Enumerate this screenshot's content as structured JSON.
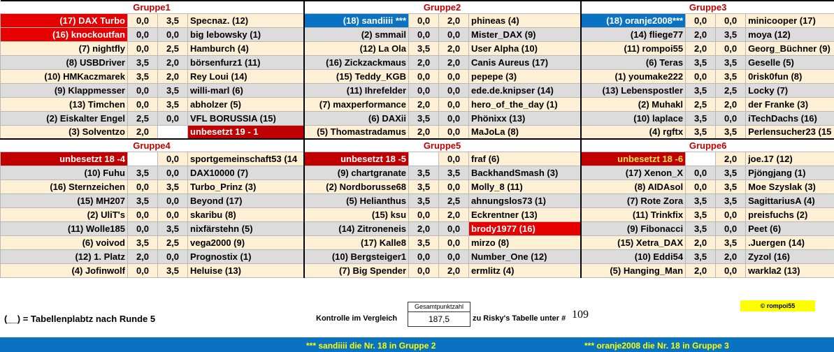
{
  "groups": {
    "g1": {
      "title": "Gruppe1"
    },
    "g2": {
      "title": "Gruppe2"
    },
    "g3": {
      "title": "Gruppe3"
    },
    "g4": {
      "title": "Gruppe4"
    },
    "g5": {
      "title": "Gruppe5"
    },
    "g6": {
      "title": "Gruppe6"
    }
  },
  "top": [
    [
      "(17) DAX Turbo",
      "0,0",
      "3,5",
      "Specnaz. (12)",
      "(18) sandiiii ***",
      "0,0",
      "2,0",
      "phineas (4)",
      "(18) oranje2008***",
      "0,0",
      "0,0",
      "minicooper (17)"
    ],
    [
      "(16) knockoutfan",
      "0,0",
      "0,0",
      "big lebowsky (1)",
      "(2) smmail",
      "0,0",
      "0,0",
      "Mister_DAX (9)",
      "(14) fliege77",
      "2,0",
      "3,5",
      "moya (12)"
    ],
    [
      "(7) nightfly",
      "0,0",
      "2,5",
      "Hamburch (4)",
      "(12) La Ola",
      "3,5",
      "2,0",
      "User Alpha (10)",
      "(11) rompoi55",
      "2,0",
      "0,0",
      "Georg_Büchner (9)"
    ],
    [
      "(8) USBDriver",
      "3,5",
      "2,0",
      "börsenfurz1 (11)",
      "(16) Zickzackmaus",
      "2,0",
      "2,0",
      "Canis Aureus (17)",
      "(6) Teras",
      "3,5",
      "3,5",
      "Geselle (5)"
    ],
    [
      "(10) HMKaczmarek",
      "3,5",
      "2,0",
      "Rey Loui (14)",
      "(15) Teddy_KGB",
      "0,0",
      "0,0",
      "pepepe (3)",
      "(1) youmake222",
      "0,0",
      "3,5",
      "0risk0fun (8)"
    ],
    [
      "(9) Klappmesser",
      "0,0",
      "3,5",
      "willi-marl (6)",
      "(11) Ihrefelder",
      "0,0",
      "0,0",
      "ede.de.knipser (14)",
      "(13) Lebenspostler",
      "3,5",
      "2,5",
      "Locky (7)"
    ],
    [
      "(13) Timchen",
      "0,0",
      "3,5",
      "abholzer (5)",
      "(7) maxperformance",
      "2,0",
      "0,0",
      "hero_of_the_day (1)",
      "(2) Muhakl",
      "2,5",
      "2,0",
      "der Franke (3)"
    ],
    [
      "(2) Eiskalter Engel",
      "2,5",
      "0,0",
      "VFL BORUSSIA (15)",
      "(6) DAXii",
      "3,5",
      "0,0",
      "Phönixx (13)",
      "(10) laplace",
      "3,5",
      "0,0",
      "iTechDachs (16)"
    ],
    [
      "(3) Solventzo",
      "2,0",
      "",
      "unbesetzt 19 - 1",
      "(5) Thomastradamus",
      "2,0",
      "0,0",
      "MaJoLa (8)",
      "(4) rgftx",
      "3,5",
      "3,5",
      "Perlensucher23 (15"
    ]
  ],
  "bottom": [
    [
      "unbesetzt 18 -4",
      "",
      "0,0",
      "sportgemeinschaft53 (14",
      "unbesetzt 18 -5",
      "",
      "0,0",
      "fraf (6)",
      "unbesetzt 18 -6",
      "",
      "2,0",
      "joe.17 (12)"
    ],
    [
      "(10) Fuhu",
      "3,5",
      "0,0",
      "DAX10000 (7)",
      "(9) chartgranate",
      "3,5",
      "3,5",
      "BackhandSmash (3)",
      "(17) Xenon_X",
      "0,0",
      "3,5",
      "Pjöngjang (1)"
    ],
    [
      "(16) Sternzeichen",
      "0,0",
      "3,5",
      "Turbo_Prinz (3)",
      "(2) Nordborusse68",
      "3,5",
      "0,0",
      "Molly_8 (11)",
      "(8) AIDAsol",
      "0,0",
      "3,5",
      "Moe Szyslak (3)"
    ],
    [
      "(15) MH207",
      "3,5",
      "0,0",
      "Beyond (17)",
      "(5) Helianthus",
      "3,5",
      "2,5",
      "ahnungslos73 (1)",
      "(7) Rote Zora",
      "3,5",
      "3,5",
      "SagittariusA (4)"
    ],
    [
      "(2) UliT's",
      "0,0",
      "0,0",
      "skaribu (8)",
      "(15) ksu",
      "0,0",
      "2,0",
      "Eckrentner (13)",
      "(11) Trinkfix",
      "3,5",
      "0,0",
      "preisfuchs (2)"
    ],
    [
      "(11) Wolle185",
      "0,0",
      "3,5",
      "nixfärstehn (5)",
      "(14) Zitroneneis",
      "2,0",
      "0,0",
      "brody1977 (16)",
      "(9) Fibonacci",
      "3,5",
      "0,0",
      "Peet (6)"
    ],
    [
      "(6) voivod",
      "3,5",
      "2,5",
      "vega2000 (9)",
      "(17) Kalle8",
      "3,5",
      "0,0",
      "mirzo (8)",
      "(15) Xetra_DAX",
      "2,0",
      "3,5",
      ".Juergen (14)"
    ],
    [
      "(12) 1. Platz",
      "2,0",
      "0,0",
      "Prognostix (1)",
      "(10) Bergsteiger1",
      "0,0",
      "0,0",
      "Number_One (12)",
      "(10) Eddi54",
      "3,5",
      "2,0",
      "Zyzol (16)"
    ],
    [
      "(4) Jofinwolf",
      "0,0",
      "3,5",
      "Heluise (13)",
      "(7) Big Spender",
      "0,0",
      "2,0",
      "ermlitz (4)",
      "(5) Hanging_Man",
      "2,0",
      "0,0",
      "warkla2 (13)"
    ]
  ],
  "legend": "(__) = Tabellenplabtz nach Runde 5",
  "kontrolle": "Kontrolle im Vergleich",
  "gesamtpunktzahl": {
    "label": "Gesamtpunktzahl",
    "value": "187,5"
  },
  "risky": "zu Risky's Tabelle unter #",
  "risky_number": "109",
  "credit": "© rompoi55",
  "footer": {
    "left": "*** sandiiii die Nr. 18 in  Gruppe 2",
    "right": "*** oranje2008 die Nr. 18 in  Gruppe 3"
  },
  "colors": {
    "red": "#e60000",
    "dark_red": "#c00000",
    "blue": "#0a72c2",
    "gray_row": "#dcdcdc",
    "cream_row": "#fdf0d5",
    "yellow": "#ffff00"
  }
}
